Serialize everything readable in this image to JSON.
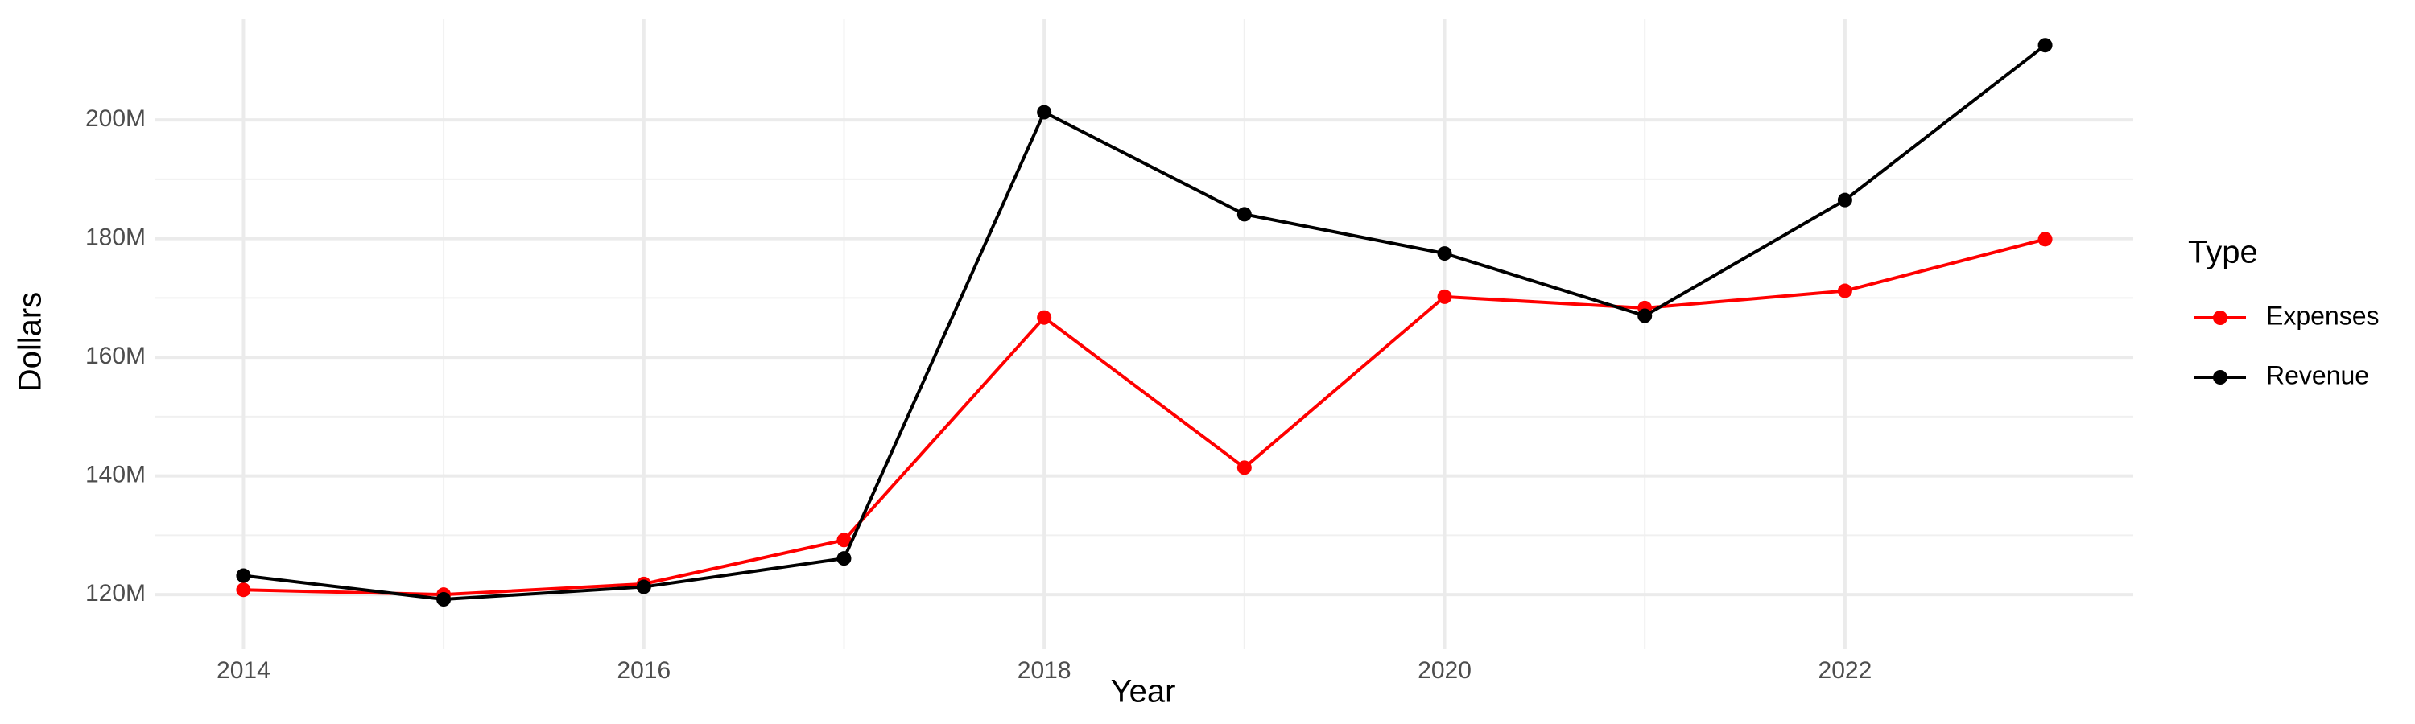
{
  "chart_data": {
    "type": "line",
    "x_label": "Year",
    "y_label": "Dollars",
    "legend_title": "Type",
    "legend_position": "right",
    "grid": true,
    "x": [
      2014,
      2015,
      2016,
      2017,
      2018,
      2019,
      2020,
      2021,
      2022,
      2023
    ],
    "series": [
      {
        "name": "Expenses",
        "color": "#ff0000",
        "values": [
          120800000,
          120000000,
          121800000,
          129200000,
          166700000,
          141400000,
          170200000,
          168300000,
          171200000,
          179900000
        ]
      },
      {
        "name": "Revenue",
        "color": "#000000",
        "values": [
          123200000,
          119200000,
          121300000,
          126100000,
          201300000,
          184100000,
          177500000,
          167000000,
          186500000,
          212600000
        ]
      }
    ],
    "xlim": [
      2013.56,
      2023.44
    ],
    "xticks": [
      2014,
      2016,
      2018,
      2020,
      2022
    ],
    "ylim": [
      110800000,
      217100000
    ],
    "yticks": [
      {
        "value": 120000000,
        "label": "120M"
      },
      {
        "value": 140000000,
        "label": "140M"
      },
      {
        "value": 160000000,
        "label": "160M"
      },
      {
        "value": 180000000,
        "label": "180M"
      },
      {
        "value": 200000000,
        "label": "200M"
      }
    ]
  }
}
